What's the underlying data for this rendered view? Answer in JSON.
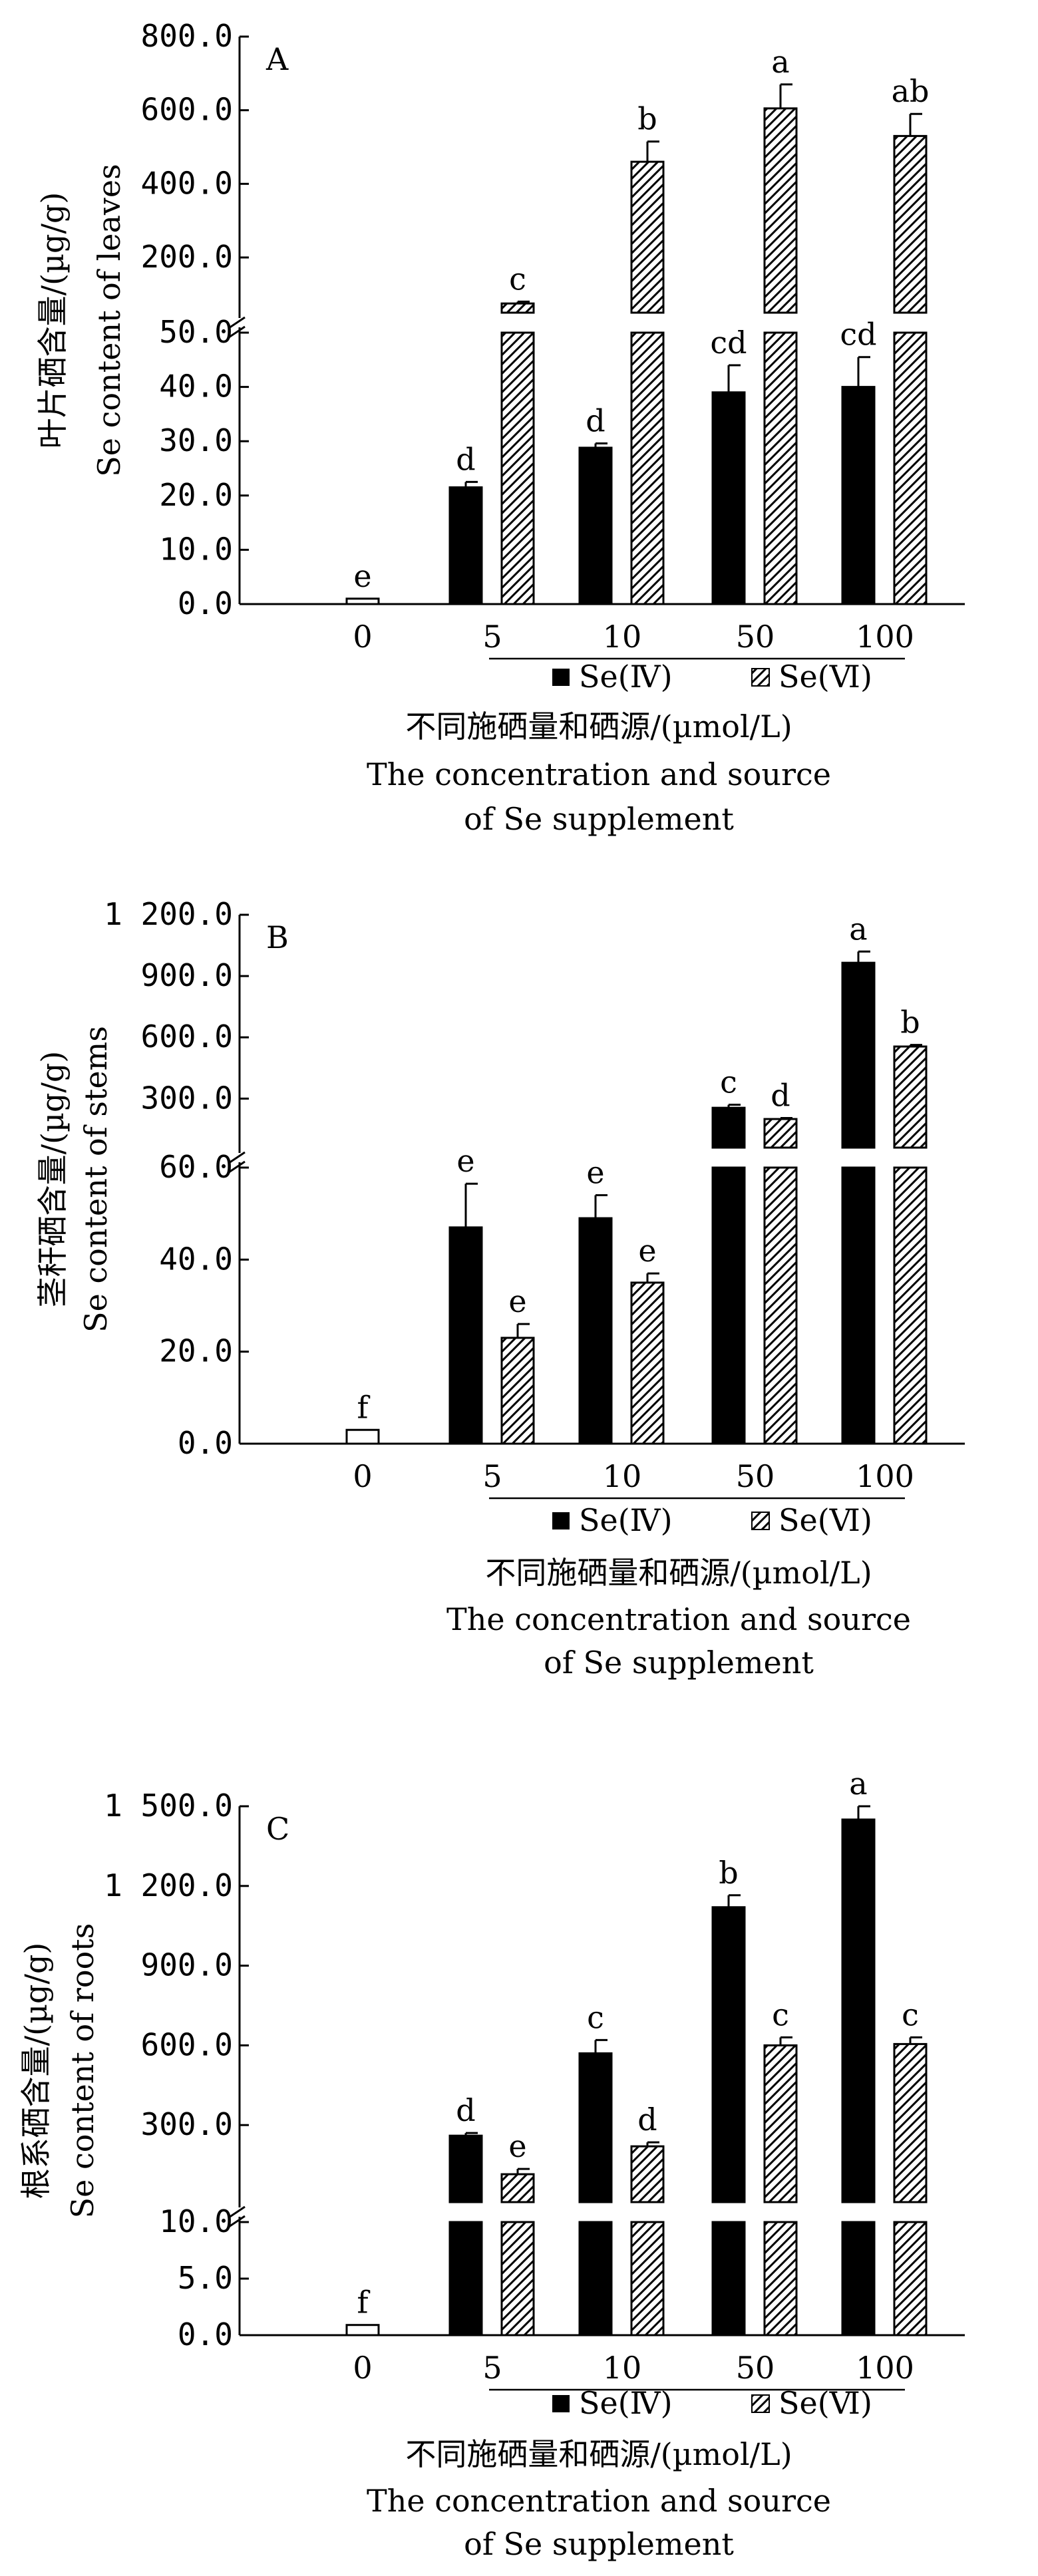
{
  "chart_data": [
    {
      "type": "bar",
      "panel_label": "A",
      "ylabel_cn": "叶片硒含量/(µg/g)",
      "ylabel_en": "Se content of leaves",
      "xlabel_cn": "不同施硒量和硒源/(µmol/L)",
      "xlabel_en_line1": "The concentration and source",
      "xlabel_en_line2": "of Se supplement",
      "categories": [
        "0",
        "5",
        "10",
        "50",
        "100"
      ],
      "legend": [
        "Se(Ⅳ)",
        "Se(Ⅵ)"
      ],
      "control": {
        "value": 1.0,
        "sig": "e"
      },
      "series": [
        {
          "name": "Se(Ⅳ)",
          "values": [
            null,
            21.5,
            28.8,
            39.0,
            40.0
          ],
          "errors": [
            null,
            1.0,
            0.8,
            5.0,
            5.5
          ],
          "sig": [
            null,
            "d",
            "d",
            "cd",
            "cd"
          ]
        },
        {
          "name": "Se(Ⅵ)",
          "values": [
            null,
            75.0,
            460.0,
            605.0,
            530.0
          ],
          "errors": [
            null,
            5.0,
            55.0,
            65.0,
            60.0
          ],
          "sig": [
            null,
            "c",
            "b",
            "a",
            "ab"
          ]
        }
      ],
      "axis_lower": {
        "ticks": [
          "0.0",
          "10.0",
          "20.0",
          "30.0",
          "40.0",
          "50.0"
        ],
        "ylim": [
          0,
          50
        ]
      },
      "axis_upper": {
        "ticks": [
          "200.0",
          "400.0",
          "600.0",
          "800.0"
        ],
        "ylim": [
          50,
          800
        ]
      },
      "axis_break": 50
    },
    {
      "type": "bar",
      "panel_label": "B",
      "ylabel_cn": "茎秆硒含量/(µg/g)",
      "ylabel_en": "Se content of stems",
      "xlabel_cn": "不同施硒量和硒源/(µmol/L)",
      "xlabel_en_line1": "The concentration and source",
      "xlabel_en_line2": "of Se supplement",
      "categories": [
        "0",
        "5",
        "10",
        "50",
        "100"
      ],
      "legend": [
        "Se(Ⅳ)",
        "Se(Ⅵ)"
      ],
      "control": {
        "value": 3.0,
        "sig": "f"
      },
      "series": [
        {
          "name": "Se(Ⅳ)",
          "values": [
            null,
            47.0,
            49.0,
            255.0,
            965.0
          ],
          "errors": [
            null,
            9.5,
            5.0,
            15.0,
            55.0
          ],
          "sig": [
            null,
            "e",
            "e",
            "c",
            "a"
          ]
        },
        {
          "name": "Se(Ⅵ)",
          "values": [
            null,
            23.0,
            35.0,
            200.0,
            555.0
          ],
          "errors": [
            null,
            3.0,
            2.0,
            5.0,
            8.0
          ],
          "sig": [
            null,
            "e",
            "e",
            "d",
            "b"
          ]
        }
      ],
      "axis_lower": {
        "ticks": [
          "0.0",
          "20.0",
          "40.0",
          "60.0"
        ],
        "ylim": [
          0,
          60
        ]
      },
      "axis_upper": {
        "ticks": [
          "300.0",
          "600.0",
          "900.0",
          "1 200.0"
        ],
        "ylim": [
          60,
          1200
        ]
      },
      "axis_break": 60
    },
    {
      "type": "bar",
      "panel_label": "C",
      "ylabel_cn": "根系硒含量/(µg/g)",
      "ylabel_en": "Se content of roots",
      "xlabel_cn": "不同施硒量和硒源/(µmol/L)",
      "xlabel_en_line1": "The concentration and source",
      "xlabel_en_line2": "of Se supplement",
      "categories": [
        "0",
        "5",
        "10",
        "50",
        "100"
      ],
      "legend": [
        "Se(Ⅳ)",
        "Se(Ⅵ)"
      ],
      "control": {
        "value": 0.9,
        "sig": "f"
      },
      "series": [
        {
          "name": "Se(Ⅳ)",
          "values": [
            null,
            260.0,
            570.0,
            1120.0,
            1450.0
          ],
          "errors": [
            null,
            10.0,
            50.0,
            45.0,
            50.0
          ],
          "sig": [
            null,
            "d",
            "c",
            "b",
            "a"
          ]
        },
        {
          "name": "Se(Ⅵ)",
          "values": [
            null,
            115.0,
            220.0,
            600.0,
            605.0
          ],
          "errors": [
            null,
            20.0,
            15.0,
            30.0,
            25.0
          ],
          "sig": [
            null,
            "e",
            "d",
            "c",
            "c"
          ]
        }
      ],
      "axis_lower": {
        "ticks": [
          "0.0",
          "5.0",
          "10.0"
        ],
        "ylim": [
          0,
          10
        ]
      },
      "axis_upper": {
        "ticks": [
          "300.0",
          "600.0",
          "900.0",
          "1 200.0",
          "1 500.0"
        ],
        "ylim": [
          10,
          1500
        ]
      },
      "axis_break": 10
    }
  ]
}
